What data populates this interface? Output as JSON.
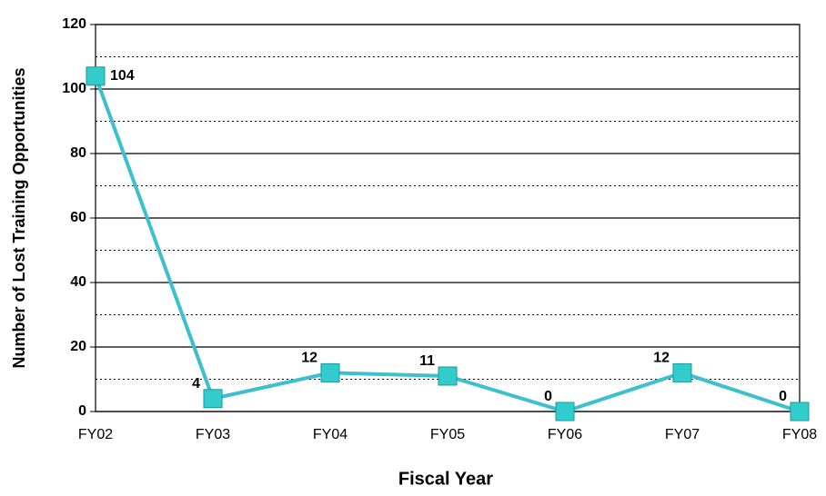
{
  "chart_data": {
    "type": "line",
    "x_label": "Fiscal Year",
    "y_label": "Number of Lost Training Opportunities",
    "categories": [
      "FY02",
      "FY03",
      "FY04",
      "FY05",
      "FY06",
      "FY07",
      "FY08"
    ],
    "values": [
      104,
      4,
      12,
      11,
      0,
      12,
      0
    ],
    "color": "#3cc0cc",
    "marker_color": "#33cccc",
    "ylim": [
      0,
      120
    ],
    "yticks": [
      0,
      20,
      40,
      60,
      80,
      100,
      120
    ],
    "minor_yticks": [
      10,
      30,
      50,
      70,
      90,
      110
    ],
    "grid": true
  }
}
